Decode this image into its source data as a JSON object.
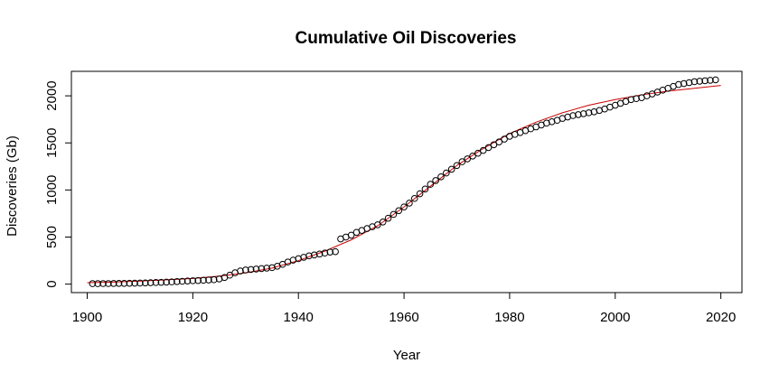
{
  "chart_data": {
    "type": "scatter",
    "title": "Cumulative Oil Discoveries",
    "xlabel": "Year",
    "ylabel": "Discoveries (Gb)",
    "xlim": [
      1897,
      2024
    ],
    "ylim": [
      -90,
      2260
    ],
    "xticks": [
      1900,
      1920,
      1940,
      1960,
      1980,
      2000,
      2020
    ],
    "yticks": [
      0,
      500,
      1000,
      1500,
      2000
    ],
    "grid": false,
    "legend": "none",
    "colors": {
      "points": "#000000",
      "fit_line": "#cc0000",
      "frame": "#000000"
    },
    "series": [
      {
        "kind": "points",
        "x": [
          1901,
          1902,
          1903,
          1904,
          1905,
          1906,
          1907,
          1908,
          1909,
          1910,
          1911,
          1912,
          1913,
          1914,
          1915,
          1916,
          1917,
          1918,
          1919,
          1920,
          1921,
          1922,
          1923,
          1924,
          1925,
          1926,
          1927,
          1928,
          1929,
          1930,
          1931,
          1932,
          1933,
          1934,
          1935,
          1936,
          1937,
          1938,
          1939,
          1940,
          1941,
          1942,
          1943,
          1944,
          1945,
          1946,
          1947,
          1948,
          1949,
          1950,
          1951,
          1952,
          1953,
          1954,
          1955,
          1956,
          1957,
          1958,
          1959,
          1960,
          1961,
          1962,
          1963,
          1964,
          1965,
          1966,
          1967,
          1968,
          1969,
          1970,
          1971,
          1972,
          1973,
          1974,
          1975,
          1976,
          1977,
          1978,
          1979,
          1980,
          1981,
          1982,
          1983,
          1984,
          1985,
          1986,
          1987,
          1988,
          1989,
          1990,
          1991,
          1992,
          1993,
          1994,
          1995,
          1996,
          1997,
          1998,
          1999,
          2000,
          2001,
          2002,
          2003,
          2004,
          2005,
          2006,
          2007,
          2008,
          2009,
          2010,
          2011,
          2012,
          2013,
          2014,
          2015,
          2016,
          2017,
          2018,
          2019
        ],
        "y": [
          5,
          5,
          6,
          6,
          7,
          8,
          8,
          9,
          10,
          11,
          13,
          15,
          17,
          19,
          21,
          24,
          27,
          30,
          33,
          36,
          38,
          41,
          44,
          47,
          55,
          70,
          95,
          120,
          140,
          150,
          155,
          160,
          165,
          170,
          175,
          190,
          210,
          235,
          255,
          270,
          285,
          300,
          310,
          320,
          330,
          340,
          345,
          480,
          500,
          520,
          550,
          570,
          590,
          610,
          630,
          660,
          700,
          740,
          780,
          820,
          860,
          910,
          960,
          1010,
          1060,
          1100,
          1140,
          1180,
          1220,
          1260,
          1300,
          1330,
          1360,
          1390,
          1420,
          1450,
          1480,
          1510,
          1540,
          1570,
          1590,
          1610,
          1630,
          1650,
          1670,
          1690,
          1710,
          1725,
          1740,
          1760,
          1775,
          1790,
          1800,
          1810,
          1820,
          1830,
          1845,
          1860,
          1880,
          1900,
          1920,
          1940,
          1960,
          1970,
          1980,
          2000,
          2020,
          2040,
          2060,
          2080,
          2100,
          2120,
          2130,
          2140,
          2150,
          2155,
          2160,
          2165,
          2170
        ]
      },
      {
        "kind": "fitted-line",
        "x": [
          1900,
          1905,
          1910,
          1915,
          1920,
          1925,
          1930,
          1935,
          1940,
          1945,
          1950,
          1955,
          1960,
          1965,
          1970,
          1975,
          1980,
          1985,
          1990,
          1995,
          2000,
          2005,
          2010,
          2015,
          2020
        ],
        "y": [
          15,
          22,
          32,
          45,
          60,
          85,
          120,
          170,
          250,
          350,
          470,
          620,
          820,
          1040,
          1260,
          1440,
          1600,
          1720,
          1820,
          1900,
          1960,
          2010,
          2050,
          2080,
          2110
        ]
      }
    ]
  }
}
